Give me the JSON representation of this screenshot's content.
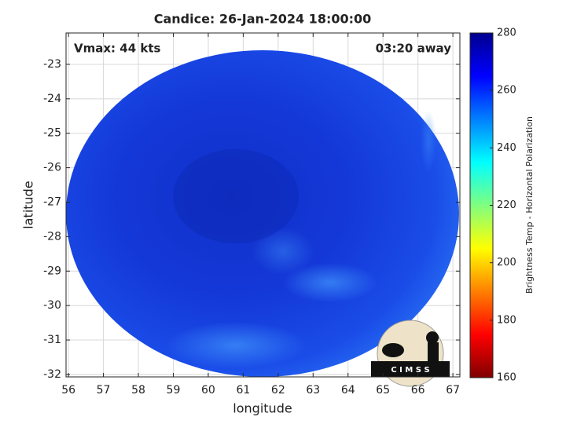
{
  "chart_data": {
    "type": "image",
    "title": "Candice: 26-Jan-2024 18:00:00",
    "x_label": "longitude",
    "y_label": "latitude",
    "annotations": [
      "Vmax: 44 kts",
      "03:20 away"
    ],
    "xlim": [
      55.93,
      67.2
    ],
    "ylim": [
      -32.07,
      -22.09
    ],
    "xticks": [
      56,
      57,
      58,
      59,
      60,
      61,
      62,
      63,
      64,
      65,
      66,
      67
    ],
    "yticks": [
      -32,
      -31,
      -30,
      -29,
      -28,
      -27,
      -26,
      -25,
      -24,
      -23
    ],
    "grid": true,
    "colorbar": {
      "label": "Brightness Temp - Horizontal Polarization",
      "clim": [
        160,
        280
      ],
      "ticks": [
        160,
        180,
        200,
        220,
        240,
        260,
        280
      ],
      "colormap": "jet"
    },
    "logo": "C I M S S"
  }
}
